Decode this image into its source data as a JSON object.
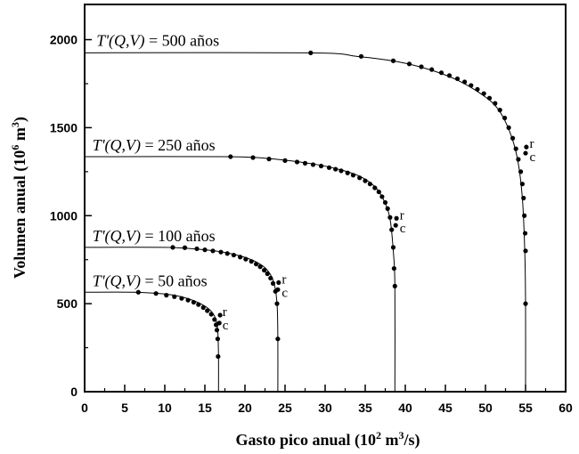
{
  "chart_data": {
    "type": "line",
    "xlabel": {
      "main": "Gasto pico anual (10",
      "exp1": "2",
      "mid": " m",
      "exp2": "3",
      "end": "/s)"
    },
    "ylabel": {
      "main": "Volumen anual (10",
      "exp1": "6",
      "mid": " m",
      "exp2": "3",
      "end": ")"
    },
    "xlim": [
      0,
      60
    ],
    "ylim": [
      0,
      2200
    ],
    "x_major_ticks": [
      0,
      5,
      10,
      15,
      20,
      25,
      30,
      35,
      40,
      45,
      50,
      55,
      60
    ],
    "y_major_ticks": [
      0,
      500,
      1000,
      1500,
      2000
    ],
    "x_tick_labels": [
      "0",
      "5",
      "10",
      "15",
      "20",
      "25",
      "30",
      "35",
      "40",
      "45",
      "50",
      "55",
      "60"
    ],
    "y_tick_labels": [
      "0",
      "500",
      "1000",
      "1500",
      "2000"
    ],
    "series": [
      {
        "name": "T'(Q,V) = 50 años",
        "label_func": "T'(Q,V)",
        "label_eq": " = 50 años",
        "label_at": [
          0.3,
          580
        ],
        "asymptote_v": 565,
        "asymptote_q": 16.7,
        "curve": [
          [
            0,
            565
          ],
          [
            6,
            565
          ],
          [
            10,
            555
          ],
          [
            12,
            540
          ],
          [
            14,
            510
          ],
          [
            15.5,
            470
          ],
          [
            16.3,
            420
          ],
          [
            16.6,
            350
          ],
          [
            16.7,
            200
          ],
          [
            16.7,
            0
          ]
        ],
        "points": [
          [
            6.7,
            565
          ],
          [
            8.9,
            558
          ],
          [
            10.2,
            548
          ],
          [
            11.2,
            540
          ],
          [
            12.1,
            530
          ],
          [
            12.9,
            520
          ],
          [
            13.6,
            508
          ],
          [
            14.2,
            495
          ],
          [
            14.8,
            478
          ],
          [
            15.3,
            460
          ],
          [
            15.8,
            440
          ],
          [
            16.2,
            410
          ],
          [
            16.4,
            380
          ],
          [
            16.5,
            350
          ],
          [
            16.6,
            300
          ],
          [
            16.65,
            200
          ]
        ],
        "r_point": [
          16.9,
          435
        ],
        "c_point": [
          16.8,
          390
        ],
        "r_text_at": [
          17.2,
          450
        ],
        "c_text_at": [
          17.2,
          375
        ]
      },
      {
        "name": "T'(Q,V) = 100 años",
        "label_func": "T'(Q,V)",
        "label_eq": " = 100 años",
        "label_at": [
          0.3,
          835
        ],
        "asymptote_v": 820,
        "asymptote_q": 24.1,
        "curve": [
          [
            0,
            820
          ],
          [
            10,
            820
          ],
          [
            14,
            810
          ],
          [
            17,
            795
          ],
          [
            19.5,
            770
          ],
          [
            21.5,
            735
          ],
          [
            22.8,
            690
          ],
          [
            23.6,
            620
          ],
          [
            24,
            500
          ],
          [
            24.1,
            300
          ],
          [
            24.1,
            0
          ]
        ],
        "points": [
          [
            11,
            820
          ],
          [
            12.5,
            818
          ],
          [
            14,
            812
          ],
          [
            15,
            806
          ],
          [
            16,
            800
          ],
          [
            17,
            793
          ],
          [
            17.8,
            785
          ],
          [
            18.6,
            776
          ],
          [
            19.4,
            765
          ],
          [
            20.1,
            753
          ],
          [
            20.8,
            740
          ],
          [
            21.4,
            725
          ],
          [
            21.9,
            710
          ],
          [
            22.4,
            690
          ],
          [
            22.8,
            670
          ],
          [
            23.2,
            645
          ],
          [
            23.5,
            615
          ],
          [
            23.8,
            570
          ],
          [
            24,
            500
          ],
          [
            24.1,
            300
          ]
        ],
        "r_point": [
          24.2,
          620
        ],
        "c_point": [
          24.1,
          580
        ],
        "r_text_at": [
          24.6,
          635
        ],
        "c_text_at": [
          24.6,
          560
        ]
      },
      {
        "name": "T'(Q,V) = 250 años",
        "label_func": "T'(Q,V)",
        "label_eq": " = 250 años",
        "label_at": [
          0.3,
          1350
        ],
        "asymptote_v": 1335,
        "asymptote_q": 38.7,
        "curve": [
          [
            0,
            1335
          ],
          [
            18,
            1335
          ],
          [
            24,
            1320
          ],
          [
            29,
            1290
          ],
          [
            32,
            1260
          ],
          [
            34.5,
            1220
          ],
          [
            36.3,
            1160
          ],
          [
            37.4,
            1080
          ],
          [
            38.1,
            980
          ],
          [
            38.5,
            800
          ],
          [
            38.7,
            600
          ],
          [
            38.7,
            0
          ]
        ],
        "points": [
          [
            18.2,
            1335
          ],
          [
            21,
            1330
          ],
          [
            23,
            1322
          ],
          [
            25,
            1313
          ],
          [
            26.5,
            1305
          ],
          [
            27.5,
            1298
          ],
          [
            28.5,
            1290
          ],
          [
            29.5,
            1282
          ],
          [
            30.5,
            1273
          ],
          [
            31.3,
            1264
          ],
          [
            32,
            1255
          ],
          [
            32.8,
            1243
          ],
          [
            33.5,
            1230
          ],
          [
            34.3,
            1215
          ],
          [
            35,
            1198
          ],
          [
            35.6,
            1180
          ],
          [
            36.2,
            1158
          ],
          [
            36.7,
            1135
          ],
          [
            37.1,
            1108
          ],
          [
            37.5,
            1075
          ],
          [
            37.8,
            1040
          ],
          [
            38.1,
            990
          ],
          [
            38.3,
            920
          ],
          [
            38.5,
            820
          ],
          [
            38.6,
            700
          ],
          [
            38.7,
            600
          ]
        ],
        "r_point": [
          38.9,
          985
        ],
        "c_point": [
          38.8,
          945
        ],
        "r_text_at": [
          39.3,
          1000
        ],
        "c_text_at": [
          39.3,
          925
        ]
      },
      {
        "name": "T'(Q,V) = 500 años",
        "label_func": "T'(Q,V)",
        "label_eq": " = 500 años",
        "label_at": [
          0.8,
          1945
        ],
        "asymptote_v": 1925,
        "asymptote_q": 55,
        "curve": [
          [
            0,
            1925
          ],
          [
            28,
            1925
          ],
          [
            34,
            1905
          ],
          [
            39,
            1875
          ],
          [
            43,
            1830
          ],
          [
            46.5,
            1770
          ],
          [
            49.5,
            1690
          ],
          [
            51.5,
            1610
          ],
          [
            53,
            1480
          ],
          [
            54,
            1320
          ],
          [
            54.6,
            1100
          ],
          [
            54.9,
            800
          ],
          [
            55,
            500
          ],
          [
            55,
            0
          ]
        ],
        "points": [
          [
            28.2,
            1925
          ],
          [
            34.5,
            1905
          ],
          [
            38.5,
            1880
          ],
          [
            40.5,
            1862
          ],
          [
            42,
            1846
          ],
          [
            43.3,
            1830
          ],
          [
            44.5,
            1812
          ],
          [
            45.5,
            1796
          ],
          [
            46.5,
            1778
          ],
          [
            47.4,
            1760
          ],
          [
            48.2,
            1740
          ],
          [
            49,
            1718
          ],
          [
            49.8,
            1694
          ],
          [
            50.5,
            1668
          ],
          [
            51.2,
            1638
          ],
          [
            51.8,
            1600
          ],
          [
            52.4,
            1555
          ],
          [
            52.9,
            1500
          ],
          [
            53.4,
            1440
          ],
          [
            53.8,
            1380
          ],
          [
            54.1,
            1320
          ],
          [
            54.4,
            1250
          ],
          [
            54.6,
            1180
          ],
          [
            54.75,
            1100
          ],
          [
            54.85,
            1000
          ],
          [
            54.95,
            900
          ],
          [
            55,
            800
          ],
          [
            55,
            500
          ]
        ],
        "r_point": [
          55.1,
          1390
        ],
        "c_point": [
          55,
          1355
        ],
        "r_text_at": [
          55.5,
          1405
        ],
        "c_text_at": [
          55.5,
          1330
        ]
      }
    ],
    "r_text": "r",
    "c_text": "c"
  }
}
